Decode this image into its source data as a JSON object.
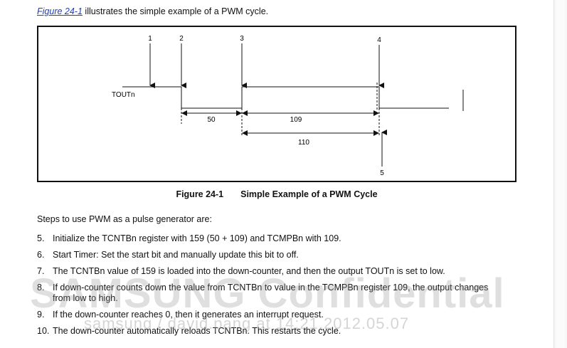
{
  "intro": {
    "link": "Figure 24-1",
    "text": " illustrates the simple example of a PWM cycle."
  },
  "figure": {
    "markers": [
      "1",
      "2",
      "3",
      "4",
      "5"
    ],
    "signal_label": "TOUTn",
    "interval_a": "50",
    "interval_b": "109",
    "interval_c": "110",
    "caption_number": "Figure 24-1",
    "caption_title": "Simple Example of a PWM Cycle"
  },
  "section_intro": "Steps to use PWM as a pulse generator are:",
  "steps": [
    {
      "num": "5.",
      "text": "Initialize the TCNTBn register with 159 (50 + 109) and TCMPBn with 109."
    },
    {
      "num": "6.",
      "text": "Start Timer: Set the start bit and manually update this bit to off."
    },
    {
      "num": "7.",
      "text": "The TCNTBn value of 159 is loaded into the down-counter, and then the output TOUTn is set to low."
    },
    {
      "num": "8.",
      "text": "If down-counter counts down the value from TCNTBn to value in the TCMPBn register 109, the output changes from low to high."
    },
    {
      "num": "9.",
      "text": "If the down-counter reaches 0, then it generates an interrupt request."
    },
    {
      "num": "10.",
      "text": "The down-counter automatically reloads TCNTBn. This restarts the cycle."
    }
  ],
  "watermark": {
    "main": "SAMSUNG Confidential",
    "sub": "samsung / david.pang at 14:21,2012.05.07"
  }
}
